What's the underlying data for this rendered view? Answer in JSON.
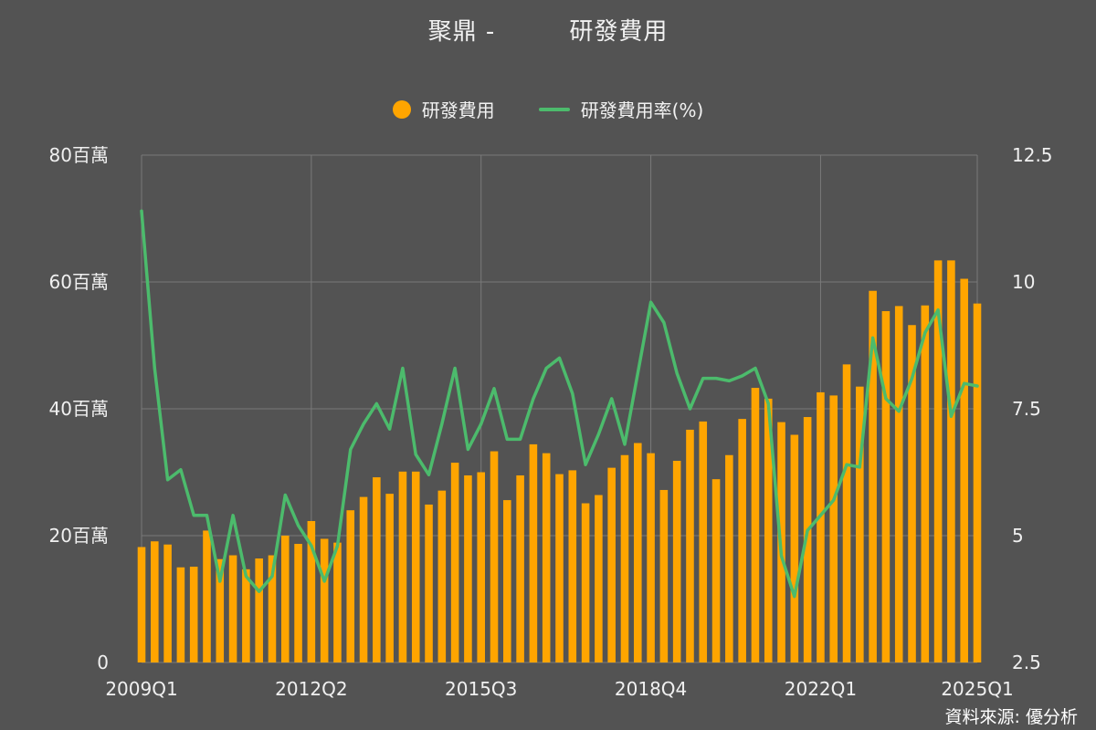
{
  "title": "聚鼎 -　　　研發費用",
  "source": "資料來源: 優分析",
  "colors": {
    "bar": "#FFA500",
    "line": "#4CBB6C",
    "grid": "#7a7a7a",
    "axis_text": "#f0f0f0"
  },
  "chart_data": {
    "type": "bar",
    "title": "聚鼎 -　　　研發費用",
    "legend_position": "top-center",
    "grid": true,
    "x_tick_labels": [
      "2009Q1",
      "2012Q2",
      "2015Q3",
      "2018Q4",
      "2022Q1",
      "2025Q1"
    ],
    "y_left": {
      "lim": [
        0,
        80
      ],
      "ticks": [
        0,
        20,
        40,
        60,
        80
      ],
      "tick_labels": [
        "0",
        "20百萬",
        "40百萬",
        "60百萬",
        "80百萬"
      ]
    },
    "y_right": {
      "lim": [
        2.5,
        12.5
      ],
      "ticks": [
        2.5,
        5,
        7.5,
        10,
        12.5
      ],
      "tick_labels": [
        "2.5",
        "5",
        "7.5",
        "10",
        "12.5"
      ]
    },
    "categories": [
      "2009Q1",
      "2009Q2",
      "2009Q3",
      "2009Q4",
      "2010Q1",
      "2010Q2",
      "2010Q3",
      "2010Q4",
      "2011Q1",
      "2011Q2",
      "2011Q3",
      "2011Q4",
      "2012Q1",
      "2012Q2",
      "2012Q3",
      "2012Q4",
      "2013Q1",
      "2013Q2",
      "2013Q3",
      "2013Q4",
      "2014Q1",
      "2014Q2",
      "2014Q3",
      "2014Q4",
      "2015Q1",
      "2015Q2",
      "2015Q3",
      "2015Q4",
      "2016Q1",
      "2016Q2",
      "2016Q3",
      "2016Q4",
      "2017Q1",
      "2017Q2",
      "2017Q3",
      "2017Q4",
      "2018Q1",
      "2018Q2",
      "2018Q3",
      "2018Q4",
      "2019Q1",
      "2019Q2",
      "2019Q3",
      "2019Q4",
      "2020Q1",
      "2020Q2",
      "2020Q3",
      "2020Q4",
      "2021Q1",
      "2021Q2",
      "2021Q3",
      "2021Q4",
      "2022Q1",
      "2022Q2",
      "2022Q3",
      "2022Q4",
      "2023Q1",
      "2023Q2",
      "2023Q3",
      "2023Q4",
      "2024Q1",
      "2024Q2",
      "2024Q3",
      "2024Q4",
      "2025Q1"
    ],
    "series": [
      {
        "name": "研發費用",
        "type": "bar",
        "axis": "left",
        "values": [
          18.2,
          19.1,
          18.6,
          15.0,
          15.1,
          20.8,
          16.3,
          16.9,
          14.7,
          16.4,
          16.9,
          20.0,
          18.7,
          22.3,
          19.5,
          18.9,
          24.0,
          26.1,
          29.2,
          26.6,
          30.1,
          30.1,
          24.9,
          27.1,
          31.5,
          29.5,
          30.0,
          33.3,
          25.6,
          29.5,
          34.4,
          33.0,
          29.7,
          30.3,
          25.1,
          26.4,
          30.7,
          32.7,
          34.6,
          33.0,
          27.2,
          31.8,
          36.7,
          38.0,
          28.9,
          32.7,
          38.4,
          43.3,
          41.6,
          37.9,
          35.9,
          38.7,
          42.6,
          42.1,
          47.0,
          43.5,
          58.6,
          55.4,
          56.2,
          53.2,
          56.3,
          63.4,
          63.4,
          60.5,
          56.6
        ]
      },
      {
        "name": "研發費用率(%)",
        "type": "line",
        "axis": "right",
        "values": [
          11.4,
          8.3,
          6.1,
          6.3,
          5.4,
          5.4,
          4.1,
          5.4,
          4.2,
          3.9,
          4.2,
          5.8,
          5.2,
          4.8,
          4.1,
          4.8,
          6.7,
          7.2,
          7.6,
          7.1,
          8.3,
          6.6,
          6.2,
          7.2,
          8.3,
          6.7,
          7.2,
          7.9,
          6.9,
          6.9,
          7.7,
          8.3,
          8.5,
          7.8,
          6.4,
          7.0,
          7.7,
          6.8,
          8.2,
          9.6,
          9.2,
          8.2,
          7.5,
          8.1,
          8.1,
          8.05,
          8.15,
          8.3,
          7.6,
          4.6,
          3.8,
          5.1,
          5.4,
          5.7,
          6.4,
          6.35,
          8.9,
          7.7,
          7.45,
          8.1,
          9.0,
          9.45,
          7.35,
          8.0,
          7.95
        ]
      }
    ]
  }
}
